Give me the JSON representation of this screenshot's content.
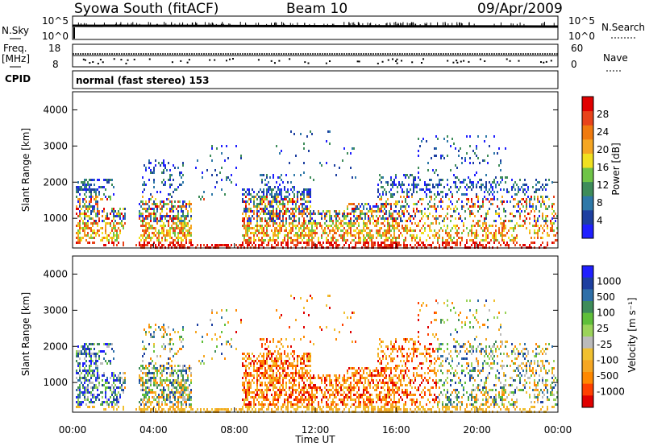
{
  "header": {
    "station": "Syowa South (fitACF)",
    "beam": "Beam 10",
    "date": "09/Apr/2009"
  },
  "noise_panel": {
    "left_label": "N.Sky",
    "right_label": "N.Search",
    "left_ticks": [
      "10^5",
      "10^0"
    ],
    "right_ticks": [
      "10^5",
      "10^0"
    ]
  },
  "freq_panel": {
    "left_label_1": "Freq.",
    "left_label_2": "[MHz]",
    "right_label": "Nave",
    "left_ticks": [
      "18",
      "8"
    ],
    "right_ticks": [
      "60",
      "0"
    ]
  },
  "cpid": {
    "label": "CPID",
    "text": "normal (fast stereo) 153"
  },
  "colors": {
    "power_scale": [
      "#1f1fff",
      "#1d3fa0",
      "#2e78a8",
      "#3e8c5a",
      "#6fc447",
      "#f0e020",
      "#f5a623",
      "#f07a0e",
      "#e8431a",
      "#e00000"
    ],
    "velocity_scale": [
      "#e00000",
      "#ff4000",
      "#ff8800",
      "#f5a623",
      "#f0c030",
      "#bbbbbb",
      "#9bd35a",
      "#5fbf3a",
      "#3e8c5a",
      "#2e6fa8",
      "#1d3fa0",
      "#1f1fff"
    ]
  },
  "chart_data": [
    {
      "type": "heatmap",
      "name": "power",
      "ylabel": "Slant Range [km]",
      "xlabel": "",
      "yticks": [
        "1000",
        "2000",
        "3000",
        "4000"
      ],
      "ylim": [
        180,
        4500
      ],
      "xlim_hours": [
        0,
        24
      ],
      "colorbar_label": "Power [dB]",
      "colorbar_ticks": [
        "4",
        "8",
        "12",
        "16",
        "20",
        "24",
        "28"
      ]
    },
    {
      "type": "heatmap",
      "name": "velocity",
      "ylabel": "Slant Range [km]",
      "xlabel": "Time UT",
      "yticks": [
        "1000",
        "2000",
        "3000",
        "4000"
      ],
      "xticks": [
        "00:00",
        "04:00",
        "08:00",
        "12:00",
        "16:00",
        "20:00",
        "00:00"
      ],
      "ylim": [
        180,
        4500
      ],
      "xlim_hours": [
        0,
        24
      ],
      "colorbar_label": "Velocity [m s⁻¹]",
      "colorbar_ticks": [
        "1000",
        "500",
        "100",
        "25",
        "-25",
        "-100",
        "-500",
        "-1000"
      ]
    }
  ]
}
